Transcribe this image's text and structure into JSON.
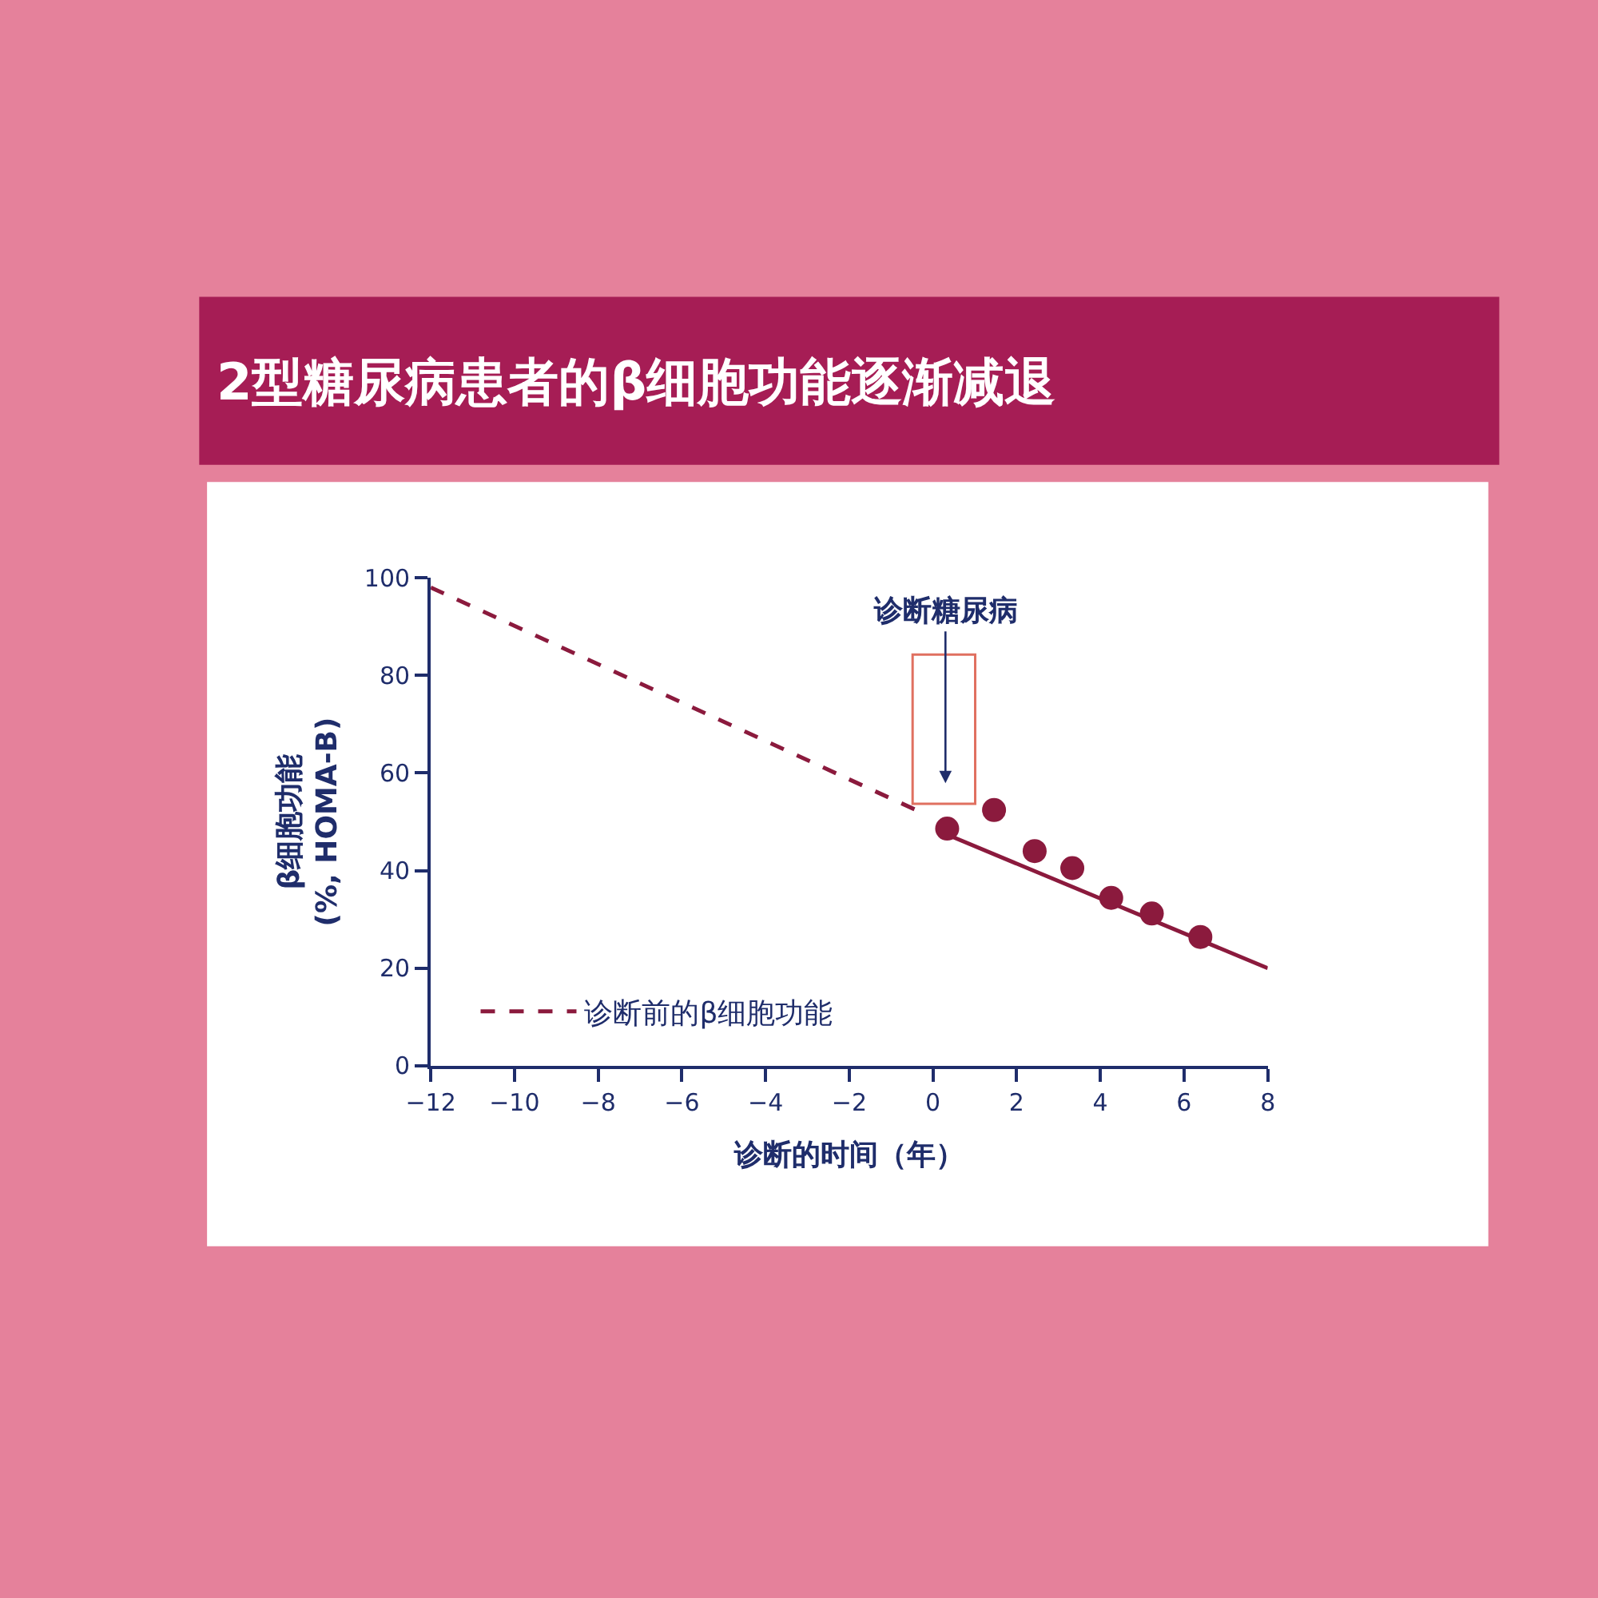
{
  "chart_data": {
    "type": "scatter",
    "title": "2型糖尿病患者的β细胞功能逐渐减退",
    "xlabel": "诊断的时间（年）",
    "ylabel": "β细胞功能\n(%, HOMA-B)",
    "annotations": [
      "诊断糖尿病"
    ],
    "series": [
      {
        "name": "诊断前的β细胞功能",
        "type": "line",
        "line_style": "dashed",
        "marker": "none",
        "color": "#8b1a3d",
        "x": [
          -12,
          -0.3
        ],
        "values": [
          98,
          52
        ]
      },
      {
        "type": "line",
        "line_style": "solid",
        "marker": "none",
        "color": "#8b1a3d",
        "x": [
          0.3,
          8
        ],
        "values": [
          47.5,
          20
        ]
      },
      {
        "marker": "circle",
        "color": "#8b1a3d",
        "x": [
          0.34,
          1.46,
          2.43,
          3.33,
          4.26,
          5.23,
          6.39
        ],
        "values": [
          48.6,
          52.4,
          44,
          40.5,
          34.4,
          31.2,
          26.4
        ]
      }
    ],
    "xlim": [
      -12,
      8
    ],
    "xticks": [
      -12,
      -10,
      -8,
      -6,
      -4,
      -2,
      0,
      2,
      4,
      6,
      8
    ],
    "ylim": [
      0,
      100
    ],
    "yticks": [
      0,
      20,
      40,
      60,
      80,
      100
    ],
    "legend": "bottom left"
  }
}
